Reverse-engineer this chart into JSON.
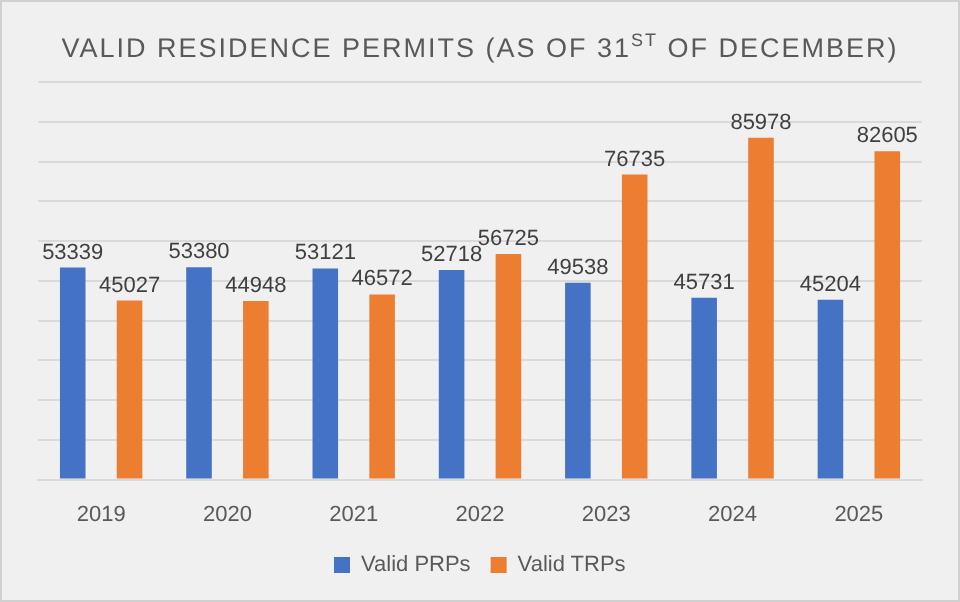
{
  "chart_data": {
    "type": "bar",
    "title": "VALID RESIDENCE PERMITS (AS OF 31$^{ST}$ OF DECEMBER)",
    "categories": [
      "2019",
      "2020",
      "2021",
      "2022",
      "2023",
      "2024",
      "2025"
    ],
    "series": [
      {
        "name": "Valid PRPs",
        "color": "#4472c4",
        "values": [
          53339,
          53380,
          53121,
          52718,
          49538,
          45731,
          45204
        ]
      },
      {
        "name": "Valid TRPs",
        "color": "#ed7d31",
        "values": [
          45027,
          44948,
          46572,
          56725,
          76735,
          85978,
          82605
        ]
      }
    ],
    "ylim": [
      0,
      100000
    ],
    "yticks": [
      {
        "value": 0,
        "label": null
      },
      {
        "value": 10000,
        "label": null
      },
      {
        "value": 20000,
        "label": null
      },
      {
        "value": 30000,
        "label": null
      },
      {
        "value": 40000,
        "label": null
      },
      {
        "value": 50000,
        "label": null
      },
      {
        "value": 60000,
        "label": null
      },
      {
        "value": 70000,
        "label": null
      },
      {
        "value": 80000,
        "label": null
      },
      {
        "value": 90000,
        "label": null
      },
      {
        "value": 100000,
        "label": null
      }
    ],
    "grid": "y",
    "legend": "bottom",
    "data_labels": true
  }
}
